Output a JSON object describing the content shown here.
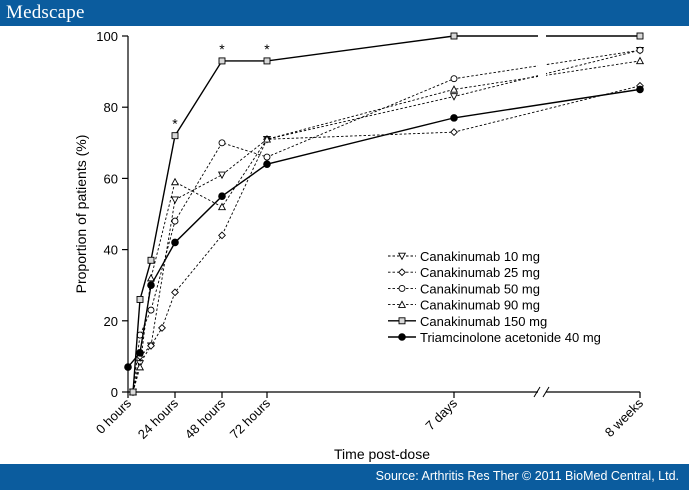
{
  "header": {
    "brand": "Medscape"
  },
  "footer": {
    "source": "Source: Arthritis Res Ther © 2011 BioMed Central, Ltd."
  },
  "colors": {
    "bar": "#0b5c9e",
    "ink": "#000000"
  },
  "chart_data": {
    "type": "line",
    "xlabel": "Time post-dose",
    "ylabel": "Proportion of patients (%)",
    "ylim": [
      0,
      100
    ],
    "yticks": [
      0,
      20,
      40,
      60,
      80,
      100
    ],
    "x_ticks": [
      "0 hours",
      "24 hours",
      "48 hours",
      "72 hours",
      "7 days",
      "8 weeks"
    ],
    "axis_break": "between 7 days and 8 weeks",
    "legend_position": "lower-right",
    "significance_marks": [
      {
        "x": "24 hours",
        "label": "*"
      },
      {
        "x": "48 hours",
        "label": "*"
      },
      {
        "x": "72 hours",
        "label": "*"
      }
    ],
    "x_points": [
      0,
      3,
      6,
      9,
      12,
      24,
      48,
      72,
      168,
      1344
    ],
    "series": [
      {
        "name": "Canakinumab 10 mg",
        "marker": "triangle-down",
        "dashed": true,
        "values": [
          null,
          0,
          8,
          13,
          null,
          54,
          61,
          71,
          83,
          96
        ]
      },
      {
        "name": "Canakinumab 25 mg",
        "marker": "diamond",
        "dashed": true,
        "values": [
          null,
          0,
          10,
          13,
          18,
          28,
          44,
          71,
          73,
          86
        ]
      },
      {
        "name": "Canakinumab 50 mg",
        "marker": "circle-open",
        "dashed": true,
        "values": [
          null,
          0,
          16,
          23,
          null,
          48,
          70,
          66,
          88,
          96
        ]
      },
      {
        "name": "Canakinumab 90 mg",
        "marker": "triangle-up",
        "dashed": true,
        "values": [
          null,
          0,
          7,
          32,
          null,
          59,
          52,
          71,
          85,
          93
        ]
      },
      {
        "name": "Canakinumab 150 mg",
        "marker": "square",
        "dashed": false,
        "values": [
          null,
          0,
          26,
          37,
          null,
          72,
          93,
          93,
          100,
          100
        ]
      },
      {
        "name": "Triamcinolone acetonide 40 mg",
        "marker": "circle-filled",
        "dashed": false,
        "values": [
          7,
          null,
          11,
          30,
          null,
          42,
          55,
          64,
          77,
          85
        ]
      }
    ]
  }
}
